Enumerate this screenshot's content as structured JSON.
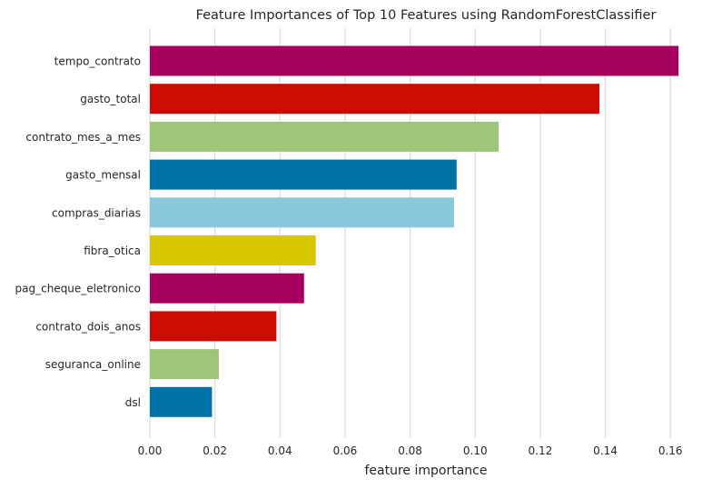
{
  "chart_data": {
    "type": "bar",
    "orientation": "horizontal",
    "title": "Feature Importances of Top 10 Features using RandomForestClassifier",
    "xlabel": "feature importance",
    "ylabel": "",
    "xlim": [
      0,
      0.17
    ],
    "grid": true,
    "categories": [
      "tempo_contrato",
      "gasto_total",
      "contrato_mes_a_mes",
      "gasto_mensal",
      "compras_diarias",
      "fibra_otica",
      "pag_cheque_eletronico",
      "contrato_dois_anos",
      "seguranca_online",
      "dsl"
    ],
    "values": [
      0.1625,
      0.1382,
      0.1072,
      0.0943,
      0.0935,
      0.051,
      0.0474,
      0.0389,
      0.0212,
      0.0191
    ],
    "colors": [
      "#a5005d",
      "#cc0c00",
      "#9fc57a",
      "#0072a6",
      "#89c9db",
      "#d8c800",
      "#a5005d",
      "#cc0c00",
      "#9fc57a",
      "#0072a6"
    ],
    "x_ticks": [
      "0.00",
      "0.02",
      "0.04",
      "0.06",
      "0.08",
      "0.10",
      "0.12",
      "0.14",
      "0.16"
    ]
  }
}
